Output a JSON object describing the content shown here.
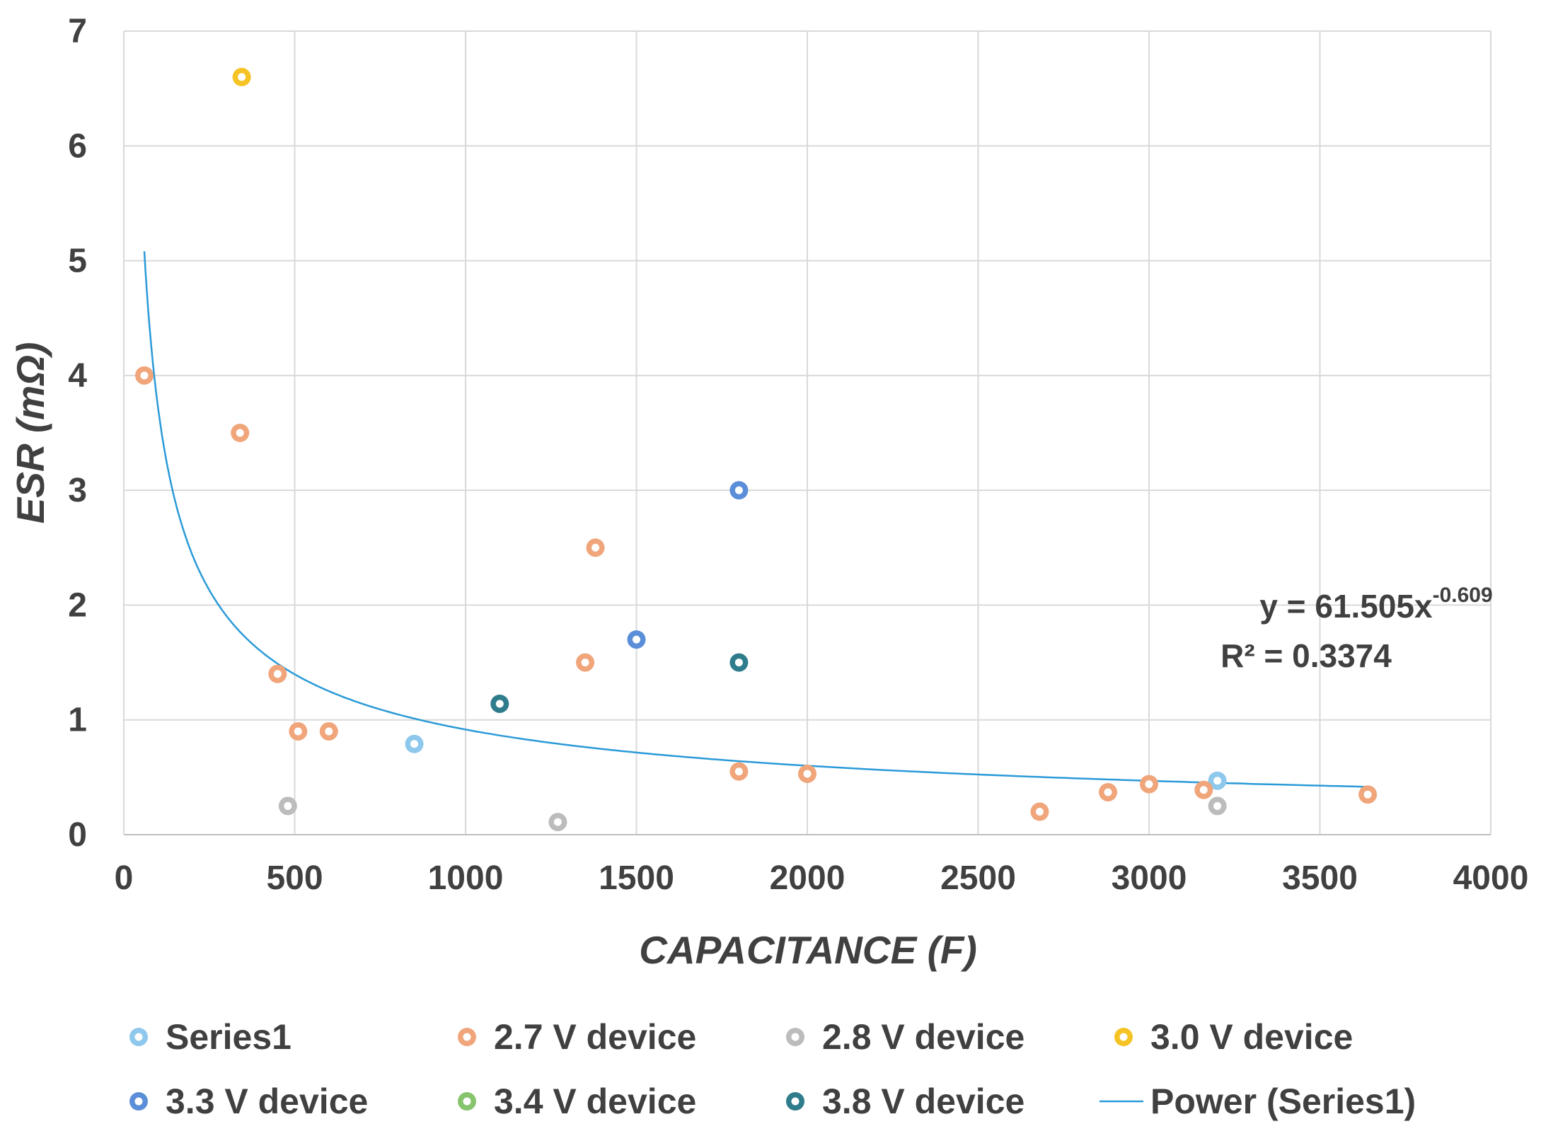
{
  "chart_data": {
    "type": "scatter",
    "title": "",
    "xlabel": "CAPACITANCE (F)",
    "ylabel": "ESR (mΩ)",
    "xlim": [
      0,
      4000
    ],
    "ylim": [
      0,
      7
    ],
    "xticks": [
      0,
      500,
      1000,
      1500,
      2000,
      2500,
      3000,
      3500,
      4000
    ],
    "yticks": [
      0,
      1,
      2,
      3,
      4,
      5,
      6,
      7
    ],
    "xtick_labels": [
      "0",
      "500",
      "1000",
      "1500",
      "2000",
      "2500",
      "3000",
      "3500",
      "4000"
    ],
    "ytick_labels": [
      "0",
      "1",
      "2",
      "3",
      "4",
      "5",
      "6",
      "7"
    ],
    "grid": true,
    "legend_position": "bottom",
    "series": [
      {
        "name": "Series1",
        "color": "#8ec8ec",
        "points": [
          [
            850,
            0.79
          ],
          [
            3200,
            0.47
          ]
        ]
      },
      {
        "name": "2.7 V device",
        "color": "#f0a57a",
        "points": [
          [
            60,
            4.0
          ],
          [
            340,
            3.5
          ],
          [
            450,
            1.4
          ],
          [
            510,
            0.9
          ],
          [
            600,
            0.9
          ],
          [
            1350,
            1.5
          ],
          [
            1380,
            2.5
          ],
          [
            1800,
            0.55
          ],
          [
            2000,
            0.53
          ],
          [
            2680,
            0.2
          ],
          [
            2880,
            0.37
          ],
          [
            3000,
            0.44
          ],
          [
            3160,
            0.39
          ],
          [
            3640,
            0.35
          ]
        ]
      },
      {
        "name": "2.8 V device",
        "color": "#bcbcbc",
        "points": [
          [
            480,
            0.25
          ],
          [
            1270,
            0.11
          ],
          [
            3200,
            0.25
          ]
        ]
      },
      {
        "name": "3.0 V device",
        "color": "#f5c324",
        "points": [
          [
            345,
            6.6
          ]
        ]
      },
      {
        "name": "3.3 V device",
        "color": "#5b8ed8",
        "points": [
          [
            1500,
            1.7
          ],
          [
            1800,
            3.0
          ]
        ]
      },
      {
        "name": "3.4 V device",
        "color": "#86c46d",
        "points": []
      },
      {
        "name": "3.8 V device",
        "color": "#2e7c8c",
        "points": [
          [
            1100,
            1.14
          ],
          [
            1800,
            1.5
          ]
        ]
      }
    ],
    "trendline": {
      "name": "Power (Series1)",
      "color": "#2a9ad8",
      "type": "power",
      "coefficient": 61.505,
      "exponent": -0.609,
      "x_range": [
        60,
        3650
      ]
    },
    "equation": {
      "prefix": "y = 61.505x",
      "exponent": "-0.609",
      "r2": "R² = 0.3374"
    },
    "legend": [
      {
        "label": "Series1",
        "color": "#8ec8ec",
        "kind": "marker"
      },
      {
        "label": "2.7 V device",
        "color": "#f0a57a",
        "kind": "marker"
      },
      {
        "label": "2.8 V device",
        "color": "#bcbcbc",
        "kind": "marker"
      },
      {
        "label": "3.0 V device",
        "color": "#f5c324",
        "kind": "marker"
      },
      {
        "label": "3.3 V device",
        "color": "#5b8ed8",
        "kind": "marker"
      },
      {
        "label": "3.4 V device",
        "color": "#86c46d",
        "kind": "marker"
      },
      {
        "label": "3.8 V device",
        "color": "#2e7c8c",
        "kind": "marker"
      },
      {
        "label": "Power (Series1)",
        "color": "#2a9ad8",
        "kind": "line"
      }
    ]
  }
}
